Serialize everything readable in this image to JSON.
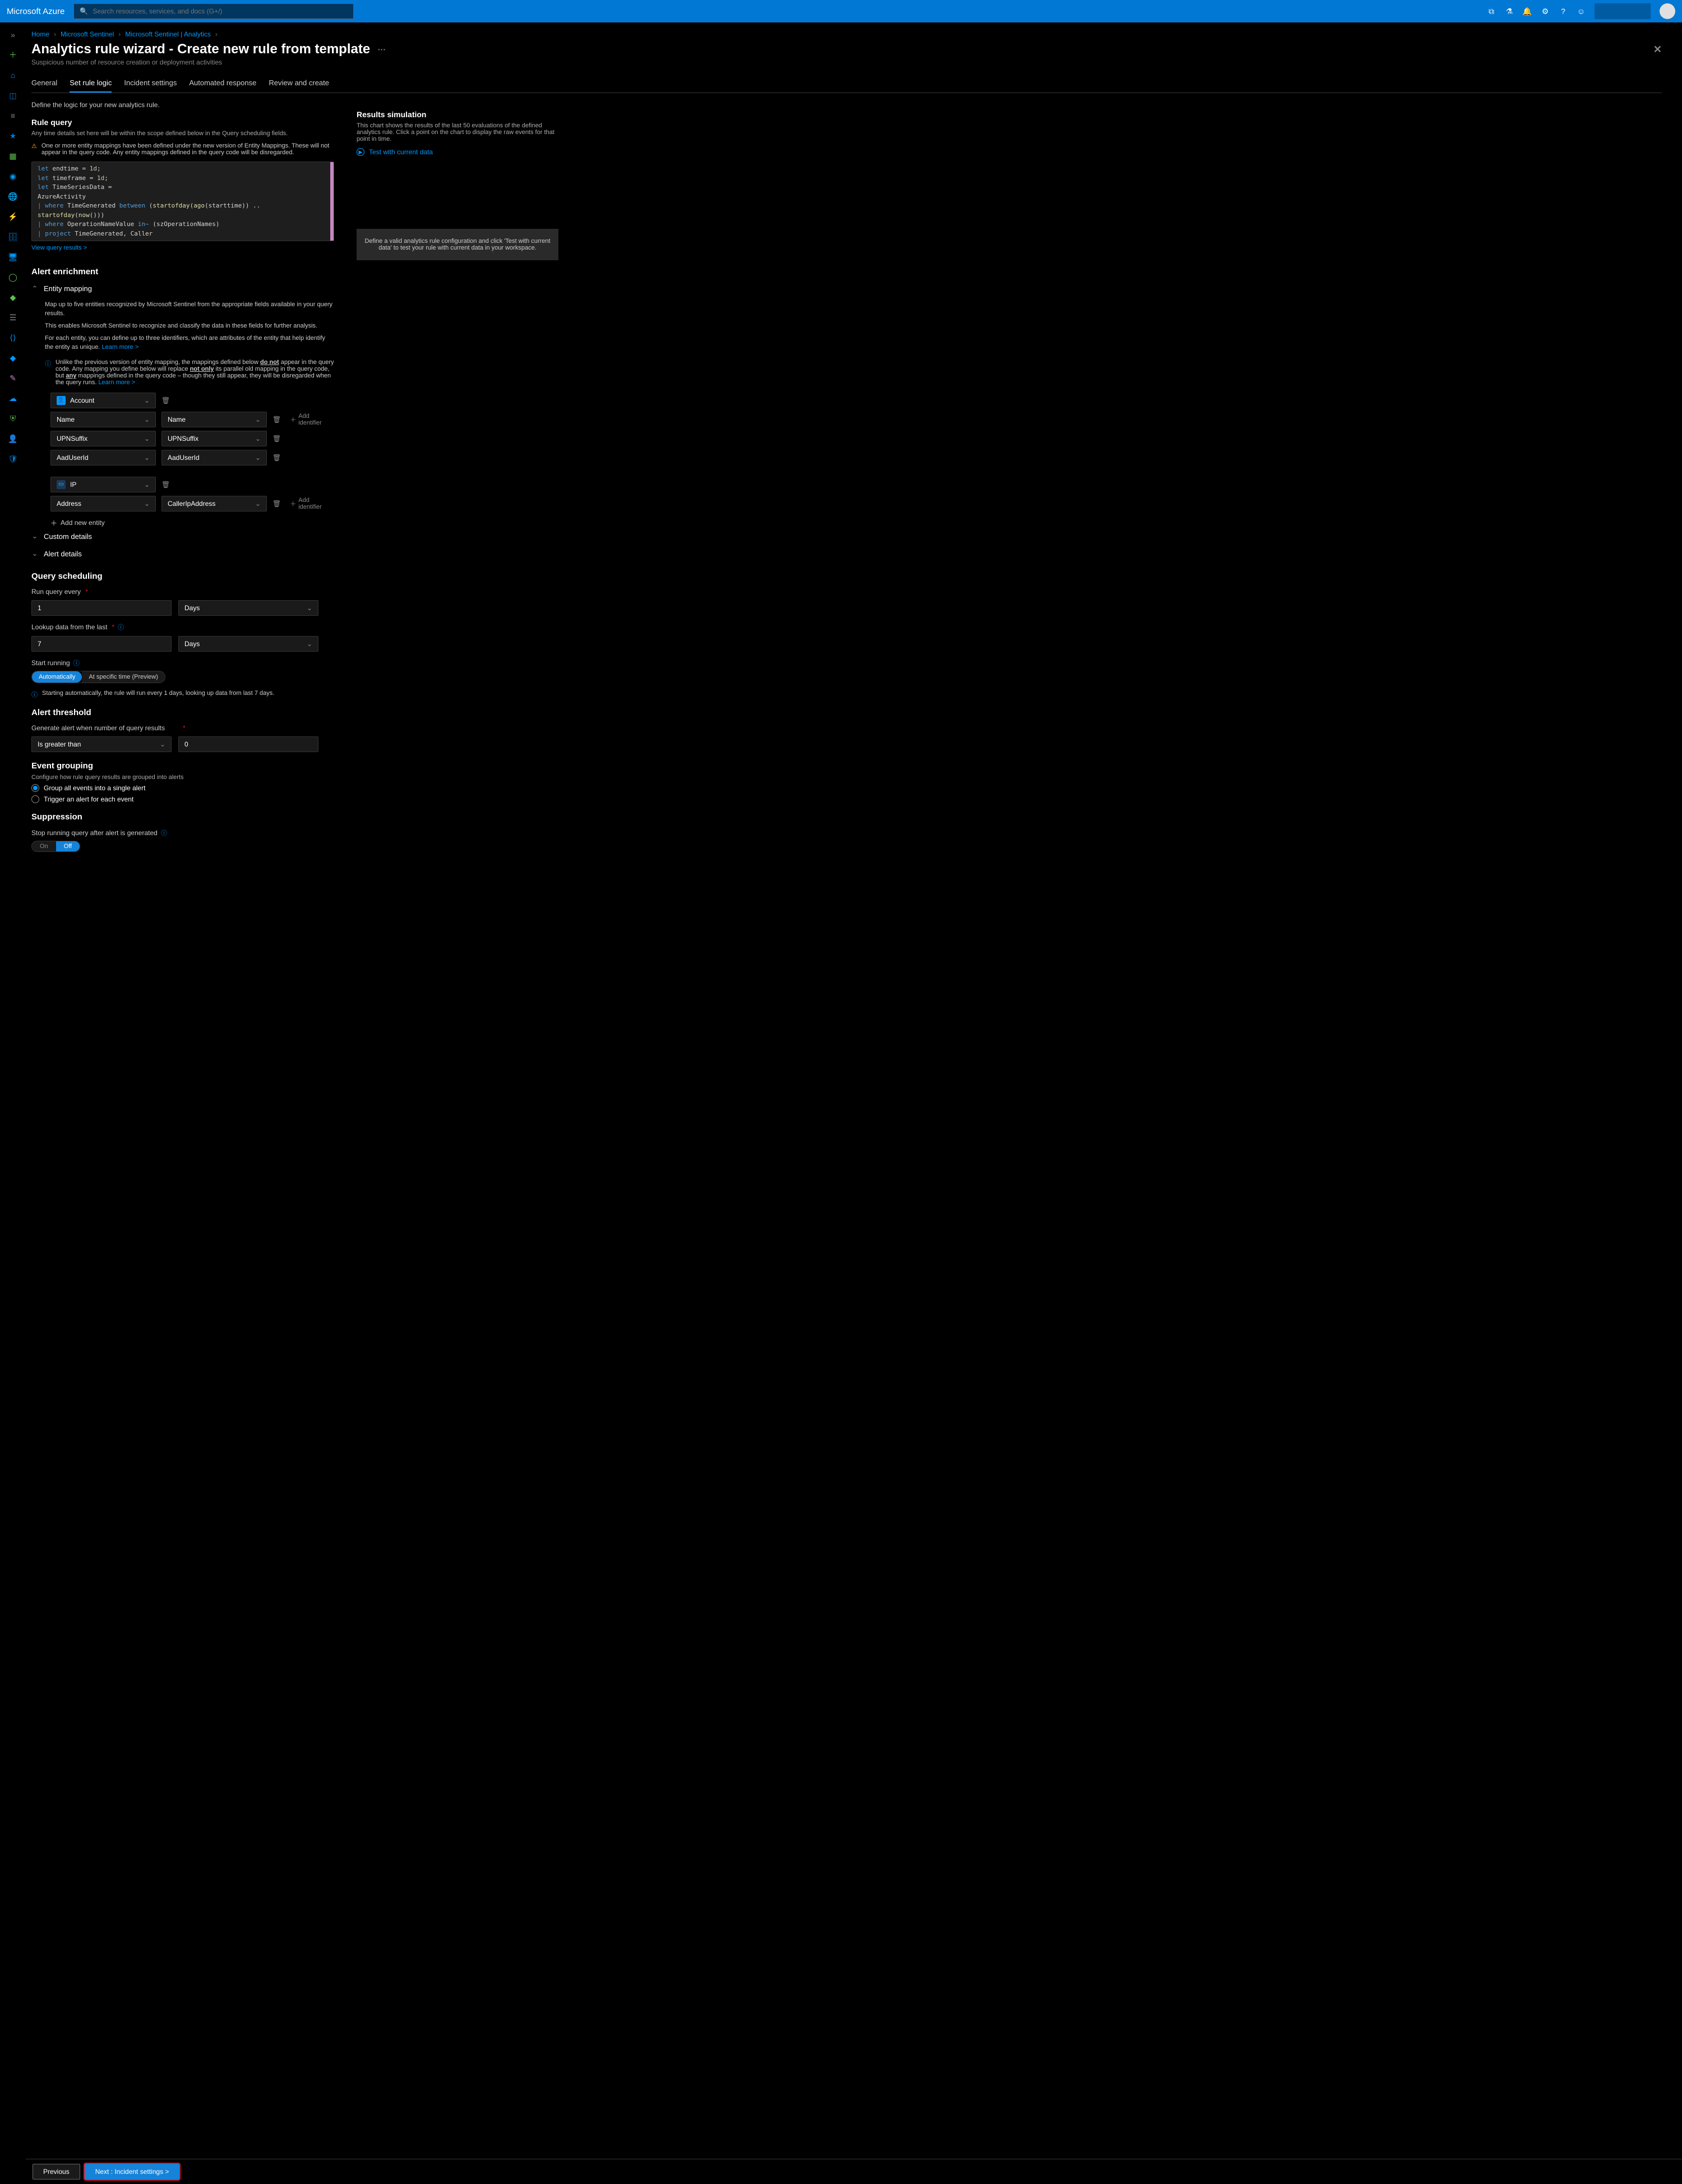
{
  "topbar": {
    "brand": "Microsoft Azure",
    "search_placeholder": "Search resources, services, and docs (G+/)"
  },
  "breadcrumbs": [
    "Home",
    "Microsoft Sentinel",
    "Microsoft Sentinel | Analytics"
  ],
  "page": {
    "title": "Analytics rule wizard - Create new rule from template",
    "subtitle": "Suspicious number of resource creation or deployment activities"
  },
  "tabs": [
    "General",
    "Set rule logic",
    "Incident settings",
    "Automated response",
    "Review and create"
  ],
  "active_tab": "Set rule logic",
  "logic_intro": "Define the logic for your new analytics rule.",
  "rule_query": {
    "heading": "Rule query",
    "description": "Any time details set here will be within the scope defined below in the Query scheduling fields.",
    "warning": "One or more entity mappings have been defined under the new version of Entity Mappings. These will not appear in the query code. Any entity mappings defined in the query code will be disregarded.",
    "code_lines": [
      {
        "t": "kw",
        "v": "let"
      },
      {
        "t": "txt",
        "v": " endtime = "
      },
      {
        "t": "num",
        "v": "1d"
      },
      {
        "t": "txt",
        "v": ";"
      },
      {
        "t": "br"
      },
      {
        "t": "kw",
        "v": "let"
      },
      {
        "t": "txt",
        "v": " timeframe = "
      },
      {
        "t": "num",
        "v": "1d"
      },
      {
        "t": "txt",
        "v": ";"
      },
      {
        "t": "br"
      },
      {
        "t": "kw",
        "v": "let"
      },
      {
        "t": "txt",
        "v": " TimeSeriesData ="
      },
      {
        "t": "br"
      },
      {
        "t": "txt",
        "v": "AzureActivity"
      },
      {
        "t": "br"
      },
      {
        "t": "pipe",
        "v": "| "
      },
      {
        "t": "kw",
        "v": "where"
      },
      {
        "t": "txt",
        "v": " TimeGenerated "
      },
      {
        "t": "kw",
        "v": "between"
      },
      {
        "t": "txt",
        "v": " ("
      },
      {
        "t": "fn",
        "v": "startofday"
      },
      {
        "t": "txt",
        "v": "("
      },
      {
        "t": "fn",
        "v": "ago"
      },
      {
        "t": "txt",
        "v": "(starttime)) .. "
      },
      {
        "t": "fn",
        "v": "startofday"
      },
      {
        "t": "txt",
        "v": "("
      },
      {
        "t": "fn",
        "v": "now"
      },
      {
        "t": "txt",
        "v": "()))"
      },
      {
        "t": "br"
      },
      {
        "t": "pipe",
        "v": "| "
      },
      {
        "t": "kw",
        "v": "where"
      },
      {
        "t": "txt",
        "v": " OperationNameValue "
      },
      {
        "t": "kw",
        "v": "in~"
      },
      {
        "t": "txt",
        "v": " (szOperationNames)"
      },
      {
        "t": "br"
      },
      {
        "t": "pipe",
        "v": "| "
      },
      {
        "t": "kw",
        "v": "project"
      },
      {
        "t": "txt",
        "v": " TimeGenerated, Caller"
      }
    ],
    "view_results": "View query results >"
  },
  "alert_enrichment": {
    "heading": "Alert enrichment",
    "entity_mapping": {
      "heading": "Entity mapping",
      "p1": "Map up to five entities recognized by Microsoft Sentinel from the appropriate fields available in your query results.",
      "p2": "This enables Microsoft Sentinel to recognize and classify the data in these fields for further analysis.",
      "p3_prefix": "For each entity, you can define up to three identifiers, which are attributes of the entity that help identify the entity as unique. ",
      "p3_link": "Learn more >",
      "info_prefix": "Unlike the previous version of entity mapping, the mappings defined below ",
      "info_b1": "do not",
      "info_mid1": " appear in the query code. Any mapping you define below will replace ",
      "info_b2": "not only",
      "info_mid2": " its parallel old mapping in the query code, but ",
      "info_b3": "any",
      "info_mid3": " mappings defined in the query code – though they still appear, they will be disregarded when the query runs. ",
      "info_link": "Learn more >",
      "entities": [
        {
          "type": "Account",
          "icon": "account",
          "identifiers": [
            {
              "field": "Name",
              "value": "Name",
              "add": true
            },
            {
              "field": "UPNSuffix",
              "value": "UPNSuffix",
              "add": false
            },
            {
              "field": "AadUserId",
              "value": "AadUserId",
              "add": false
            }
          ]
        },
        {
          "type": "IP",
          "icon": "ip",
          "identifiers": [
            {
              "field": "Address",
              "value": "CallerIpAddress",
              "add": true
            }
          ]
        }
      ],
      "add_identifier": "Add identifier",
      "add_entity": "Add new entity"
    },
    "custom_details": "Custom details",
    "alert_details": "Alert details"
  },
  "query_scheduling": {
    "heading": "Query scheduling",
    "run_label": "Run query every",
    "run_value": "1",
    "run_unit": "Days",
    "lookup_label": "Lookup data from the last",
    "lookup_value": "7",
    "lookup_unit": "Days",
    "start_label": "Start running",
    "start_options": [
      "Automatically",
      "At specific time (Preview)"
    ],
    "start_active": "Automatically",
    "start_info": "Starting automatically, the rule will run every 1 days, looking up data from last 7 days."
  },
  "alert_threshold": {
    "heading": "Alert threshold",
    "gen_label": "Generate alert when number of query results",
    "op": "Is greater than",
    "val": "0"
  },
  "event_grouping": {
    "heading": "Event grouping",
    "desc": "Configure how rule query results are grouped into alerts",
    "opt1": "Group all events into a single alert",
    "opt2": "Trigger an alert for each event"
  },
  "suppression": {
    "heading": "Suppression",
    "label": "Stop running query after alert is generated",
    "options": [
      "On",
      "Off"
    ],
    "active": "Off"
  },
  "results_sim": {
    "heading": "Results simulation",
    "desc": "This chart shows the results of the last 50 evaluations of the defined analytics rule. Click a point on the chart to display the raw events for that point in time.",
    "test": "Test with current data",
    "placeholder": "Define a valid analytics rule configuration and click 'Test with current data' to test your rule with current data in your workspace."
  },
  "footer": {
    "prev": "Previous",
    "next": "Next : Incident settings >"
  },
  "colors": {
    "brand_blue": "#0078d4",
    "link_blue": "#0099ff",
    "accent_red": "#e81123",
    "warn_yellow": "#ffb900"
  }
}
